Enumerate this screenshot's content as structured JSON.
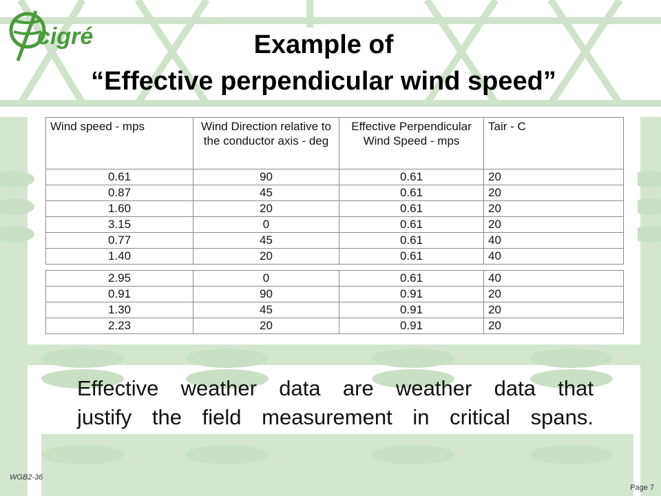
{
  "brand": {
    "logo_text": "cigré",
    "accent": "#4a9a3c"
  },
  "slide": {
    "title_line1": "Example of",
    "title_line2": "“Effective  perpendicular wind speed”"
  },
  "table": {
    "headers": [
      "Wind speed - mps",
      "Wind Direction relative to the conductor axis - deg",
      "Effective Perpendicular Wind Speed - mps",
      "Tair - C"
    ],
    "rows_top": [
      [
        "0.61",
        "90",
        "0.61",
        "20"
      ],
      [
        "0.87",
        "45",
        "0.61",
        "20"
      ],
      [
        "1.60",
        "20",
        "0.61",
        "20"
      ],
      [
        "3.15",
        "0",
        "0.61",
        "20"
      ],
      [
        "0.77",
        "45",
        "0.61",
        "40"
      ],
      [
        "1.40",
        "20",
        "0.61",
        "40"
      ]
    ],
    "rows_bottom": [
      [
        "2.95",
        "0",
        "0.61",
        "40"
      ],
      [
        "0.91",
        "90",
        "0.91",
        "20"
      ],
      [
        "1.30",
        "45",
        "0.91",
        "20"
      ],
      [
        "2.23",
        "20",
        "0.91",
        "20"
      ]
    ]
  },
  "caption": {
    "line1": "Effective weather data are weather data that",
    "line2": "justify the field measurement in critical spans."
  },
  "footer": {
    "left": "WGB2-36",
    "right": "Page 7"
  },
  "colors": {
    "background_pattern": "#c9dfc4",
    "background": "#ffffff"
  }
}
